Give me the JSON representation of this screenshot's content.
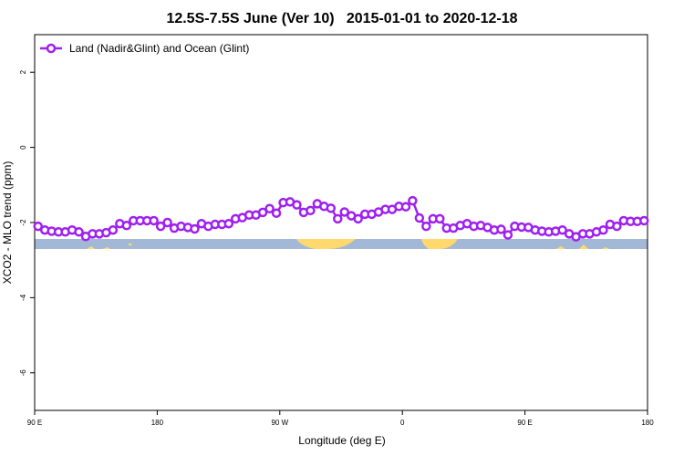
{
  "chart_data": {
    "type": "line",
    "title": "12.5S-7.5S June (Ver 10)   2015-01-01 to 2020-12-18",
    "xlabel": "Longitude (deg E)",
    "ylabel": "XCO2 - MLO trend (ppm)",
    "xlim": [
      90,
      540
    ],
    "xticks": [
      {
        "value": 90,
        "label": "90 E"
      },
      180,
      {
        "value": 270,
        "label": "90 W"
      },
      {
        "value": 360,
        "label": "0"
      },
      {
        "value": 450,
        "label": "90 E"
      },
      {
        "value": 540,
        "label": "180"
      }
    ],
    "ylim": [
      -7,
      3
    ],
    "yticks": [
      2,
      0,
      -2,
      -4,
      -6
    ],
    "grid": false,
    "legend": "top-left",
    "x": [
      92.5,
      97.5,
      102.5,
      107.5,
      112.5,
      117.5,
      122.5,
      127.5,
      132.5,
      137.5,
      142.5,
      147.5,
      152.5,
      157.5,
      162.5,
      167.5,
      172.5,
      177.5,
      182.5,
      187.5,
      192.5,
      197.5,
      202.5,
      207.5,
      212.5,
      217.5,
      222.5,
      227.5,
      232.5,
      237.5,
      242.5,
      247.5,
      252.5,
      257.5,
      262.5,
      267.5,
      272.5,
      277.5,
      282.5,
      287.5,
      292.5,
      297.5,
      302.5,
      307.5,
      312.5,
      317.5,
      322.5,
      327.5,
      332.5,
      337.5,
      342.5,
      347.5,
      352.5,
      357.5,
      362.5,
      367.5,
      372.5,
      377.5,
      382.5,
      387.5,
      392.5,
      397.5,
      402.5,
      407.5,
      412.5,
      417.5,
      422.5,
      427.5,
      432.5,
      437.5,
      442.5,
      447.5,
      452.5,
      457.5,
      462.5,
      467.5,
      472.5,
      477.5,
      482.5,
      487.5,
      492.5,
      497.5,
      502.5,
      507.5,
      512.5,
      517.5,
      522.5,
      527.5,
      532.5,
      537.5
    ],
    "series": [
      {
        "name": "Land (Nadir&Glint) and Ocean (Glint)",
        "color": "#a020f0",
        "values": [
          -2.1,
          -2.2,
          -2.23,
          -2.25,
          -2.25,
          -2.2,
          -2.25,
          -2.37,
          -2.3,
          -2.3,
          -2.27,
          -2.2,
          -2.03,
          -2.08,
          -1.95,
          -1.95,
          -1.95,
          -1.95,
          -2.1,
          -2.0,
          -2.15,
          -2.1,
          -2.13,
          -2.17,
          -2.03,
          -2.1,
          -2.05,
          -2.05,
          -2.03,
          -1.9,
          -1.87,
          -1.8,
          -1.8,
          -1.73,
          -1.63,
          -1.75,
          -1.47,
          -1.45,
          -1.53,
          -1.73,
          -1.68,
          -1.5,
          -1.57,
          -1.62,
          -1.9,
          -1.72,
          -1.82,
          -1.9,
          -1.78,
          -1.78,
          -1.72,
          -1.65,
          -1.65,
          -1.57,
          -1.58,
          -1.42,
          -1.88,
          -2.1,
          -1.9,
          -1.9,
          -2.15,
          -2.15,
          -2.08,
          -2.03,
          -2.1,
          -2.08,
          -2.13,
          -2.2,
          -2.18,
          -2.33,
          -2.1,
          -2.12,
          -2.13,
          -2.2,
          -2.23,
          -2.25,
          -2.23,
          -2.2,
          -2.3,
          -2.38,
          -2.3,
          -2.3,
          -2.25,
          -2.2,
          -2.05,
          -2.1,
          -1.95,
          -1.97,
          -1.97,
          -1.95
        ]
      }
    ]
  }
}
